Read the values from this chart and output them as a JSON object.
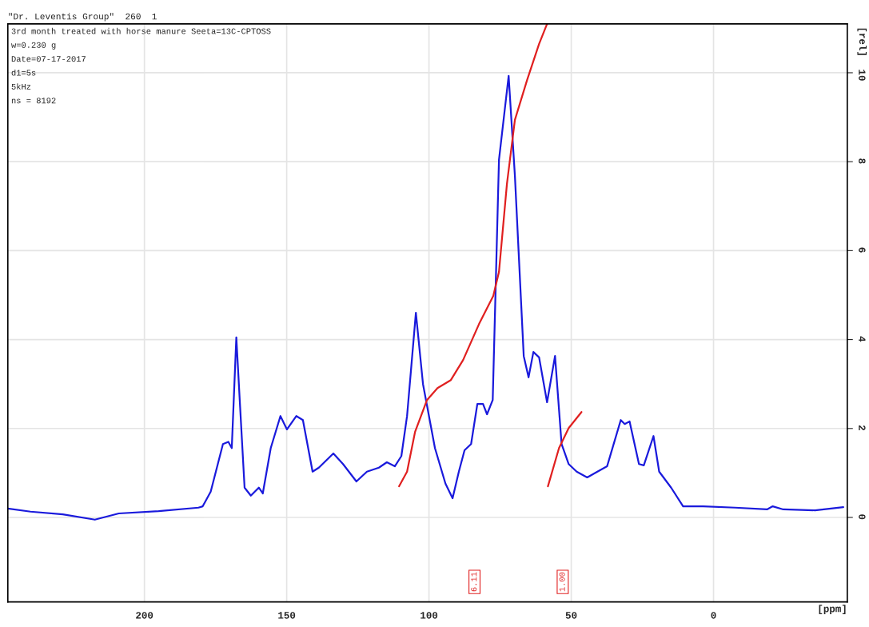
{
  "chart_data": {
    "type": "line",
    "title": "\"Dr. Leventis Group\"  260  1",
    "xlabel": "[ppm]",
    "ylabel": "[rel]",
    "xlim": [
      248,
      -47
    ],
    "xticks": [
      200,
      150,
      100,
      50,
      0
    ],
    "ylim": [
      -1.9,
      11.1
    ],
    "yticks": [
      0,
      2,
      4,
      6,
      8,
      10
    ],
    "grid": true,
    "legend": false,
    "marker": "none",
    "line_style": "solid",
    "annotations": [
      "3rd month treated with horse manure Seeta=13C-CPTOSS",
      "w=0.230 g",
      "Date=07-17-2017",
      "d1=5s",
      "5kHz",
      "ns = 8192",
      {
        "text": "6.11",
        "x": 84,
        "y": -1.45
      },
      {
        "text": "1.00",
        "x": 53,
        "y": -1.45
      }
    ],
    "series": [
      {
        "color": "#1a1adc",
        "x": [
          248,
          240,
          228.7,
          217.4,
          209,
          195,
          181,
          179.5,
          176.7,
          172.4,
          170.5,
          169.3,
          167.7,
          166.5,
          164.8,
          162.6,
          159.8,
          158.4,
          155.6,
          152.2,
          149.9,
          146.6,
          144.3,
          140.9,
          138.7,
          133.6,
          130.2,
          125.5,
          121.8,
          117.6,
          114.8,
          112,
          109.7,
          107.7,
          104.6,
          102.1,
          97.9,
          94.2,
          91.7,
          89.5,
          87.5,
          85.2,
          83,
          81,
          79.6,
          77.6,
          75.4,
          72,
          69.8,
          66.7,
          65,
          63.3,
          61.3,
          58.5,
          55.7,
          53.4,
          50.9,
          48.1,
          44.4,
          40.8,
          37.4,
          32.6,
          31.2,
          29.5,
          26.2,
          24.5,
          21.1,
          19.1,
          14.9,
          10.7,
          3.7,
          -7.6,
          -18.8,
          -20.8,
          -24.5,
          -35.7,
          -45.6
        ],
        "values": [
          0.2,
          0.13,
          0.07,
          -0.05,
          0.09,
          0.14,
          0.22,
          0.25,
          0.58,
          1.65,
          1.7,
          1.56,
          4.05,
          2.64,
          0.67,
          0.49,
          0.67,
          0.54,
          1.56,
          2.28,
          1.98,
          2.28,
          2.19,
          1.03,
          1.12,
          1.44,
          1.2,
          0.81,
          1.03,
          1.12,
          1.24,
          1.15,
          1.38,
          2.28,
          4.6,
          3.0,
          1.56,
          0.76,
          0.43,
          1.03,
          1.51,
          1.65,
          2.55,
          2.55,
          2.32,
          2.64,
          8.04,
          9.93,
          7.68,
          3.63,
          3.15,
          3.72,
          3.6,
          2.59,
          3.63,
          1.65,
          1.2,
          1.03,
          0.9,
          1.03,
          1.15,
          2.19,
          2.1,
          2.16,
          1.2,
          1.17,
          1.83,
          1.03,
          0.67,
          0.25,
          0.25,
          0.22,
          0.18,
          0.25,
          0.18,
          0.16,
          0.23
        ]
      },
      {
        "color": "#e02020",
        "x": [
          110.5,
          107.7,
          104.9,
          100.7,
          97,
          92.3,
          88,
          82.4,
          77.4,
          75.4,
          72.6,
          69.8,
          65.5,
          61.3,
          58.5
        ],
        "values": [
          0.7,
          1.03,
          1.92,
          2.64,
          2.91,
          3.09,
          3.54,
          4.35,
          4.98,
          5.52,
          7.5,
          8.94,
          9.84,
          10.65,
          11.1
        ]
      },
      {
        "color": "#e02020",
        "x": [
          58.2,
          54.3,
          50.9,
          46.4
        ],
        "values": [
          0.7,
          1.56,
          2.01,
          2.37
        ]
      }
    ]
  }
}
